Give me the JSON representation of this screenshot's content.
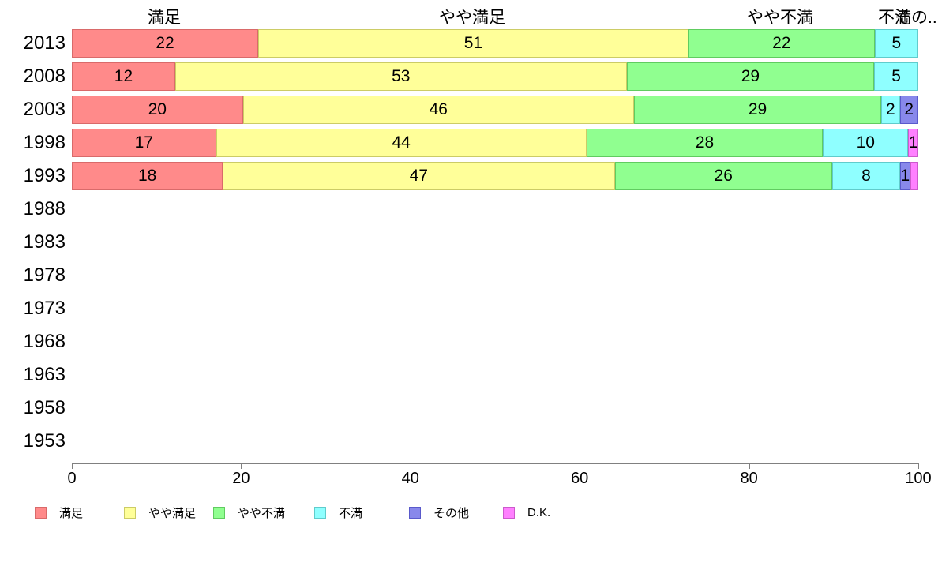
{
  "chart_data": {
    "type": "bar",
    "orientation": "horizontal",
    "stacked": true,
    "title": "",
    "xlabel": "",
    "ylabel": "",
    "xlim": [
      0,
      100
    ],
    "grid": false,
    "legend_position": "bottom",
    "column_headers": [
      "満足",
      "やや満足",
      "やや不満",
      "不満",
      "その..."
    ],
    "x_axis": {
      "values": [
        0,
        20,
        40,
        60,
        80,
        100
      ],
      "tick_labels": [
        "0",
        "20",
        "40",
        "60",
        "80",
        "100"
      ]
    },
    "categories": [
      "2013",
      "2008",
      "2003",
      "1998",
      "1993",
      "1988",
      "1983",
      "1978",
      "1973",
      "1968",
      "1963",
      "1958",
      "1953"
    ],
    "series_names": [
      "満足",
      "やや満足",
      "やや不満",
      "不満",
      "その他",
      "D.K."
    ],
    "series_colors": {
      "満足": {
        "fill": "#ff8a8a",
        "border": "#d96a6a"
      },
      "やや満足": {
        "fill": "#ffff99",
        "border": "#cccc66"
      },
      "やや不満": {
        "fill": "#90ff90",
        "border": "#60cc60"
      },
      "不満": {
        "fill": "#8fffff",
        "border": "#60cccc"
      },
      "その他": {
        "fill": "#8888eb",
        "border": "#5a5acb"
      },
      "D.K.": {
        "fill": "#ff80ff",
        "border": "#cc5acc"
      }
    },
    "rows": [
      {
        "year": "2013",
        "segments": [
          {
            "series": "満足",
            "value": 22,
            "label": "22"
          },
          {
            "series": "やや満足",
            "value": 51,
            "label": "51"
          },
          {
            "series": "やや不満",
            "value": 22,
            "label": "22"
          },
          {
            "series": "不満",
            "value": 5,
            "label": "5"
          }
        ]
      },
      {
        "year": "2008",
        "segments": [
          {
            "series": "満足",
            "value": 12,
            "label": "12"
          },
          {
            "series": "やや満足",
            "value": 53,
            "label": "53"
          },
          {
            "series": "やや不満",
            "value": 29,
            "label": "29"
          },
          {
            "series": "不満",
            "value": 5,
            "label": "5"
          }
        ]
      },
      {
        "year": "2003",
        "segments": [
          {
            "series": "満足",
            "value": 20,
            "label": "20"
          },
          {
            "series": "やや満足",
            "value": 46,
            "label": "46"
          },
          {
            "series": "やや不満",
            "value": 29,
            "label": "29"
          },
          {
            "series": "不満",
            "value": 2,
            "label": "2"
          },
          {
            "series": "その他",
            "value": 2,
            "label": "2"
          }
        ]
      },
      {
        "year": "1998",
        "segments": [
          {
            "series": "満足",
            "value": 17,
            "label": "17"
          },
          {
            "series": "やや満足",
            "value": 44,
            "label": "44"
          },
          {
            "series": "やや不満",
            "value": 28,
            "label": "28"
          },
          {
            "series": "不満",
            "value": 10,
            "label": "10"
          },
          {
            "series": "D.K.",
            "value": 1,
            "label": "1"
          }
        ]
      },
      {
        "year": "1993",
        "segments": [
          {
            "series": "満足",
            "value": 18,
            "label": "18"
          },
          {
            "series": "やや満足",
            "value": 47,
            "label": "47"
          },
          {
            "series": "やや不満",
            "value": 26,
            "label": "26"
          },
          {
            "series": "不満",
            "value": 8,
            "label": "8"
          },
          {
            "series": "その他",
            "value": 1,
            "label": "1"
          },
          {
            "series": "D.K.",
            "value": 0.8,
            "label": ""
          }
        ]
      },
      {
        "year": "1988",
        "segments": []
      },
      {
        "year": "1983",
        "segments": []
      },
      {
        "year": "1978",
        "segments": []
      },
      {
        "year": "1973",
        "segments": []
      },
      {
        "year": "1968",
        "segments": []
      },
      {
        "year": "1963",
        "segments": []
      },
      {
        "year": "1958",
        "segments": []
      },
      {
        "year": "1953",
        "segments": []
      }
    ]
  },
  "legend": {
    "items": [
      {
        "label": "満足"
      },
      {
        "label": "やや満足"
      },
      {
        "label": "やや不満"
      },
      {
        "label": "不満"
      },
      {
        "label": "その他"
      },
      {
        "label": "D.K."
      }
    ]
  }
}
